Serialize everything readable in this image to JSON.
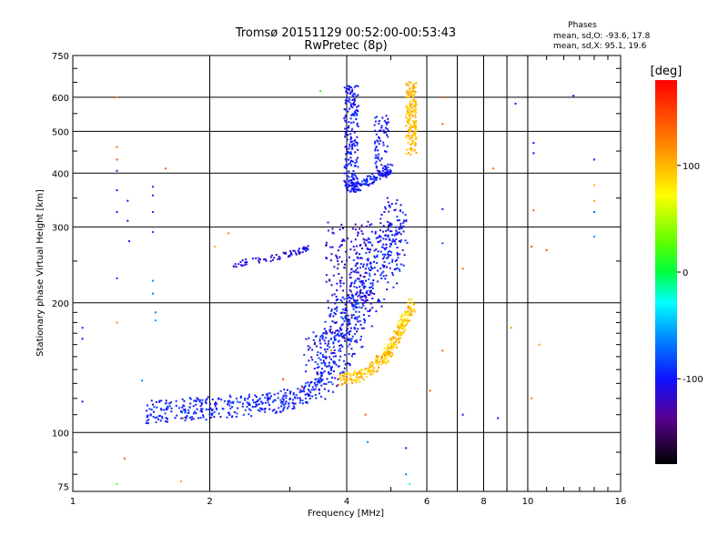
{
  "chart_data": {
    "type": "scatter",
    "title": "Tromsø 20151129 00:52:00-00:53:43",
    "subtitle": "RwPretec (8p)",
    "stats": {
      "heading": "Phases",
      "line1": "mean, sd,O: -93.6, 17.8",
      "line2": "mean, sd,X:  95.1, 19.6"
    },
    "xlabel": "Frequency [MHz]",
    "ylabel": "Stationary phase Virtual Height [km]",
    "xscale": "log",
    "yscale": "log",
    "xlim": [
      1,
      16
    ],
    "ylim": [
      73,
      750
    ],
    "xticks": [
      1,
      2,
      4,
      6,
      8,
      10,
      16
    ],
    "xtick_labels": [
      "1",
      "2",
      "4",
      "6",
      "8",
      "10",
      "16"
    ],
    "xgrid": [
      2,
      4,
      6,
      8,
      10
    ],
    "xminor": [
      7,
      9
    ],
    "yticks": [
      75,
      100,
      200,
      300,
      400,
      500,
      600,
      750
    ],
    "ytick_labels": [
      "75",
      "100",
      "200",
      "300",
      "400",
      "500",
      "600",
      "750"
    ],
    "ygrid": [
      100,
      200,
      300,
      400,
      500,
      600
    ],
    "grid": true,
    "colorbar": {
      "label": "[deg]",
      "range": [
        -180,
        180
      ],
      "ticks": [
        100,
        0,
        -100
      ],
      "tick_labels": [
        "100",
        "0",
        "-100"
      ]
    },
    "phase_clusters": {
      "o_trace_low_F": {
        "phase": -95,
        "x_range": [
          1.45,
          3.5
        ],
        "y_range": [
          108,
          135
        ]
      },
      "o_trace_F_cusp": {
        "phase": -100,
        "x": [
          3.4,
          3.6,
          3.8,
          4.0,
          4.2,
          4.4,
          4.7,
          5.0,
          5.2
        ],
        "y": [
          140,
          150,
          165,
          180,
          200,
          220,
          250,
          280,
          300
        ]
      },
      "x_trace_F": {
        "phase": 95,
        "x": [
          3.9,
          4.2,
          4.5,
          4.8,
          5.0,
          5.2,
          5.4,
          5.6
        ],
        "y": [
          132,
          135,
          140,
          148,
          158,
          170,
          185,
          200
        ]
      },
      "o_trace_high": {
        "phase": -100,
        "x": [
          4.0,
          4.1,
          4.2,
          4.4,
          4.6,
          4.8,
          5.0
        ],
        "y": [
          380,
          370,
          372,
          380,
          390,
          400,
          410
        ]
      },
      "x_trace_high": {
        "phase": 100,
        "x_range": [
          5.4,
          5.7
        ],
        "y_range": [
          440,
          650
        ]
      },
      "oblique_echo": {
        "phase": -110,
        "x": [
          2.2,
          2.5,
          2.8,
          3.1,
          3.3
        ],
        "y": [
          245,
          250,
          255,
          262,
          268
        ]
      }
    }
  }
}
